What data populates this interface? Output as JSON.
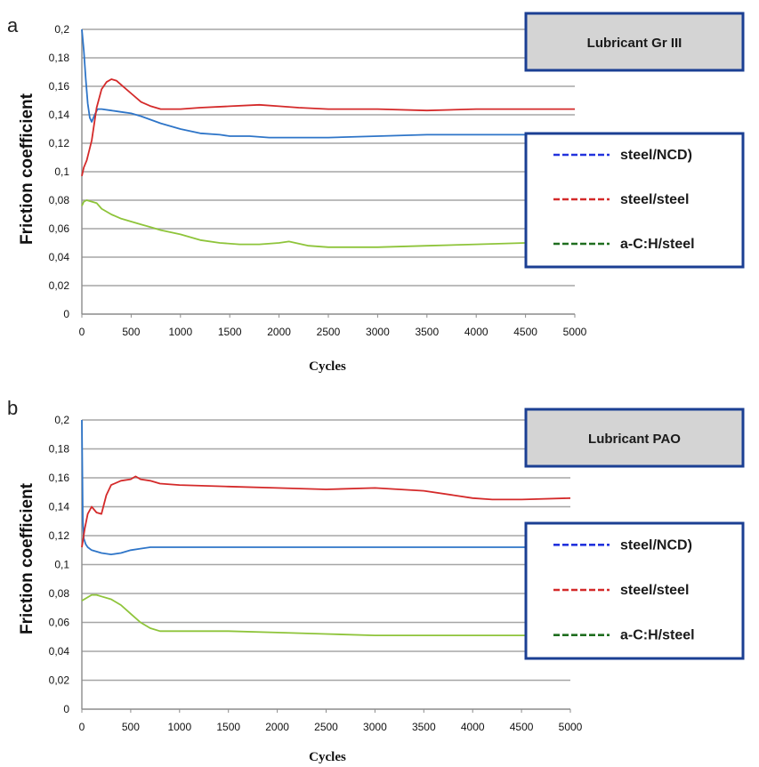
{
  "chart_data": [
    {
      "type": "line",
      "panel": "a",
      "title": "Lubricant Gr III",
      "xlabel": "Cycles",
      "ylabel": "Friction coefficient",
      "xlim": [
        0,
        5000
      ],
      "ylim": [
        0,
        0.2
      ],
      "xticks": [
        "0",
        "500",
        "1000",
        "1500",
        "2000",
        "2500",
        "3000",
        "3500",
        "4000",
        "4500",
        "5000"
      ],
      "yticks": [
        "0",
        "0,02",
        "0,04",
        "0,06",
        "0,08",
        "0,1",
        "0,12",
        "0,14",
        "0,16",
        "0,18",
        "0,2"
      ],
      "grid": true,
      "legend_position": "right",
      "series": [
        {
          "name": "steel/NCD)",
          "color": "#2e75c8",
          "legend_color": "#2233dd",
          "x": [
            0,
            20,
            40,
            60,
            80,
            100,
            130,
            160,
            200,
            300,
            400,
            500,
            600,
            800,
            1000,
            1200,
            1400,
            1500,
            1700,
            1900,
            2100,
            2300,
            2500,
            3000,
            3500,
            4000,
            4500,
            5000
          ],
          "y": [
            0.2,
            0.185,
            0.165,
            0.148,
            0.138,
            0.135,
            0.14,
            0.144,
            0.144,
            0.143,
            0.142,
            0.141,
            0.139,
            0.134,
            0.13,
            0.127,
            0.126,
            0.125,
            0.125,
            0.124,
            0.124,
            0.124,
            0.124,
            0.125,
            0.126,
            0.126,
            0.126,
            0.126
          ]
        },
        {
          "name": "steel/steel",
          "color": "#d42a2a",
          "legend_color": "#d42a2a",
          "x": [
            0,
            20,
            50,
            100,
            150,
            200,
            250,
            300,
            350,
            400,
            500,
            600,
            700,
            800,
            1000,
            1200,
            1500,
            1800,
            2000,
            2200,
            2500,
            3000,
            3500,
            4000,
            4500,
            5000
          ],
          "y": [
            0.097,
            0.103,
            0.108,
            0.122,
            0.145,
            0.158,
            0.163,
            0.165,
            0.164,
            0.161,
            0.155,
            0.149,
            0.146,
            0.144,
            0.144,
            0.145,
            0.146,
            0.147,
            0.146,
            0.145,
            0.144,
            0.144,
            0.143,
            0.144,
            0.144,
            0.144
          ]
        },
        {
          "name": "a-C:H/steel",
          "color": "#8ec43a",
          "legend_color": "#1f6e1f",
          "x": [
            0,
            20,
            50,
            100,
            150,
            200,
            300,
            400,
            500,
            600,
            700,
            800,
            1000,
            1200,
            1400,
            1600,
            1800,
            2000,
            2100,
            2300,
            2500,
            2700,
            3000,
            3500,
            4000,
            4500,
            5000
          ],
          "y": [
            0.076,
            0.079,
            0.08,
            0.079,
            0.078,
            0.074,
            0.07,
            0.067,
            0.065,
            0.063,
            0.061,
            0.059,
            0.056,
            0.052,
            0.05,
            0.049,
            0.049,
            0.05,
            0.051,
            0.048,
            0.047,
            0.047,
            0.047,
            0.048,
            0.049,
            0.05,
            0.05
          ]
        }
      ]
    },
    {
      "type": "line",
      "panel": "b",
      "title": "Lubricant PAO",
      "xlabel": "Cycles",
      "ylabel": "Friction coefficient",
      "xlim": [
        0,
        5000
      ],
      "ylim": [
        0,
        0.2
      ],
      "xticks": [
        "0",
        "500",
        "1000",
        "1500",
        "2000",
        "2500",
        "3000",
        "3500",
        "4000",
        "4500",
        "5000"
      ],
      "yticks": [
        "0",
        "0,02",
        "0,04",
        "0,06",
        "0,08",
        "0,1",
        "0,12",
        "0,14",
        "0,16",
        "0,18",
        "0,2"
      ],
      "grid": true,
      "legend_position": "right",
      "series": [
        {
          "name": "steel/NCD)",
          "color": "#2e75c8",
          "legend_color": "#2233dd",
          "x": [
            0,
            10,
            20,
            40,
            60,
            100,
            150,
            200,
            300,
            400,
            500,
            600,
            700,
            800,
            1000,
            1500,
            2000,
            2500,
            3000,
            3500,
            4000,
            4500,
            5000
          ],
          "y": [
            0.2,
            0.13,
            0.118,
            0.114,
            0.112,
            0.11,
            0.109,
            0.108,
            0.107,
            0.108,
            0.11,
            0.111,
            0.112,
            0.112,
            0.112,
            0.112,
            0.112,
            0.112,
            0.112,
            0.112,
            0.112,
            0.112,
            0.112
          ]
        },
        {
          "name": "steel/steel",
          "color": "#d42a2a",
          "legend_color": "#d42a2a",
          "x": [
            0,
            30,
            60,
            100,
            150,
            200,
            250,
            300,
            400,
            500,
            550,
            600,
            700,
            800,
            1000,
            1500,
            2000,
            2500,
            3000,
            3500,
            3800,
            4000,
            4200,
            4500,
            5000
          ],
          "y": [
            0.112,
            0.125,
            0.135,
            0.14,
            0.136,
            0.135,
            0.148,
            0.155,
            0.158,
            0.159,
            0.161,
            0.159,
            0.158,
            0.156,
            0.155,
            0.154,
            0.153,
            0.152,
            0.153,
            0.151,
            0.148,
            0.146,
            0.145,
            0.145,
            0.146
          ]
        },
        {
          "name": "a-C:H/steel",
          "color": "#8ec43a",
          "legend_color": "#1f6e1f",
          "x": [
            0,
            50,
            100,
            150,
            200,
            300,
            400,
            500,
            600,
            700,
            800,
            1000,
            1500,
            2000,
            2500,
            3000,
            3500,
            4000,
            4500,
            5000
          ],
          "y": [
            0.075,
            0.077,
            0.079,
            0.079,
            0.078,
            0.076,
            0.072,
            0.066,
            0.06,
            0.056,
            0.054,
            0.054,
            0.054,
            0.053,
            0.052,
            0.051,
            0.051,
            0.051,
            0.051,
            0.051
          ]
        }
      ]
    }
  ]
}
